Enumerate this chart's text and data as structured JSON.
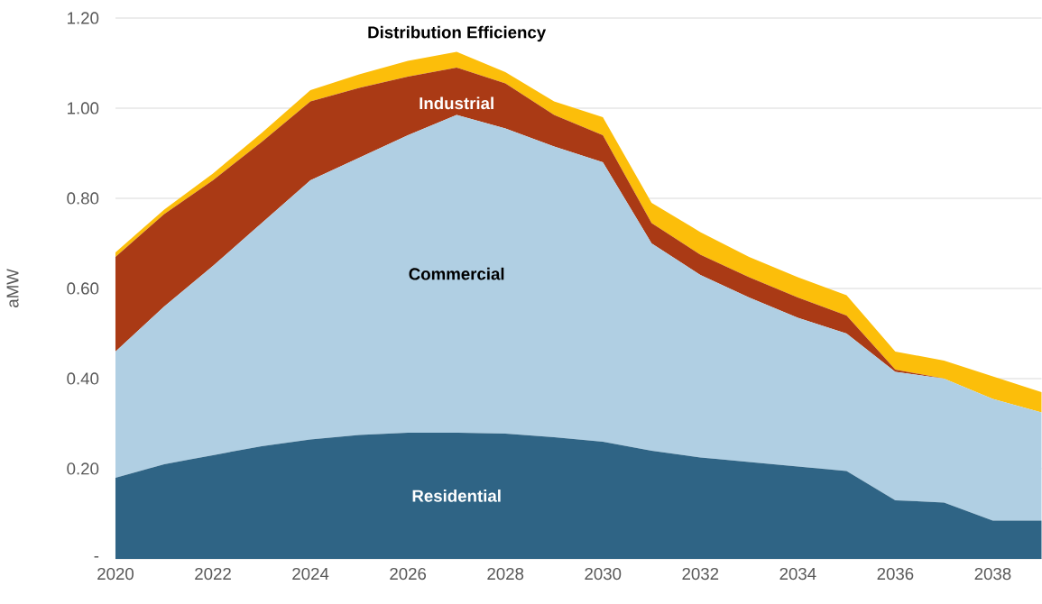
{
  "chart_data": {
    "type": "area",
    "stacked": true,
    "ylabel": "aMW",
    "grid": "y",
    "legend": false,
    "x": [
      2020,
      2021,
      2022,
      2023,
      2024,
      2025,
      2026,
      2027,
      2028,
      2029,
      2030,
      2031,
      2032,
      2033,
      2034,
      2035,
      2036,
      2037,
      2038,
      2039
    ],
    "xlim": [
      2020,
      2039
    ],
    "xticks": [
      2020,
      2022,
      2024,
      2026,
      2028,
      2030,
      2032,
      2034,
      2036,
      2038
    ],
    "ylim": [
      0,
      1.2
    ],
    "yticks": [
      {
        "value": 0,
        "label": "-"
      },
      {
        "value": 0.2,
        "label": "0.20"
      },
      {
        "value": 0.4,
        "label": "0.40"
      },
      {
        "value": 0.6,
        "label": "0.60"
      },
      {
        "value": 0.8,
        "label": "0.80"
      },
      {
        "value": 1.0,
        "label": "1.00"
      },
      {
        "value": 1.2,
        "label": "1.20"
      }
    ],
    "series": [
      {
        "name": "Residential",
        "color": "#2f6485",
        "values": [
          0.18,
          0.21,
          0.23,
          0.25,
          0.265,
          0.275,
          0.28,
          0.28,
          0.278,
          0.27,
          0.26,
          0.24,
          0.225,
          0.215,
          0.205,
          0.195,
          0.13,
          0.125,
          0.085,
          0.085
        ]
      },
      {
        "name": "Commercial",
        "color": "#b0cfe3",
        "values": [
          0.28,
          0.35,
          0.42,
          0.495,
          0.575,
          0.615,
          0.66,
          0.705,
          0.677,
          0.645,
          0.62,
          0.46,
          0.405,
          0.365,
          0.33,
          0.305,
          0.285,
          0.275,
          0.27,
          0.24
        ]
      },
      {
        "name": "Industrial",
        "color": "#aa3a15",
        "values": [
          0.21,
          0.205,
          0.19,
          0.18,
          0.175,
          0.155,
          0.13,
          0.105,
          0.1,
          0.07,
          0.06,
          0.045,
          0.045,
          0.045,
          0.045,
          0.04,
          0.005,
          0,
          0,
          0
        ]
      },
      {
        "name": "Distribution Efficiency",
        "color": "#fcbe0a",
        "values": [
          0.01,
          0.01,
          0.015,
          0.02,
          0.025,
          0.03,
          0.035,
          0.035,
          0.025,
          0.03,
          0.04,
          0.045,
          0.05,
          0.045,
          0.045,
          0.045,
          0.04,
          0.04,
          0.05,
          0.045
        ]
      }
    ]
  }
}
